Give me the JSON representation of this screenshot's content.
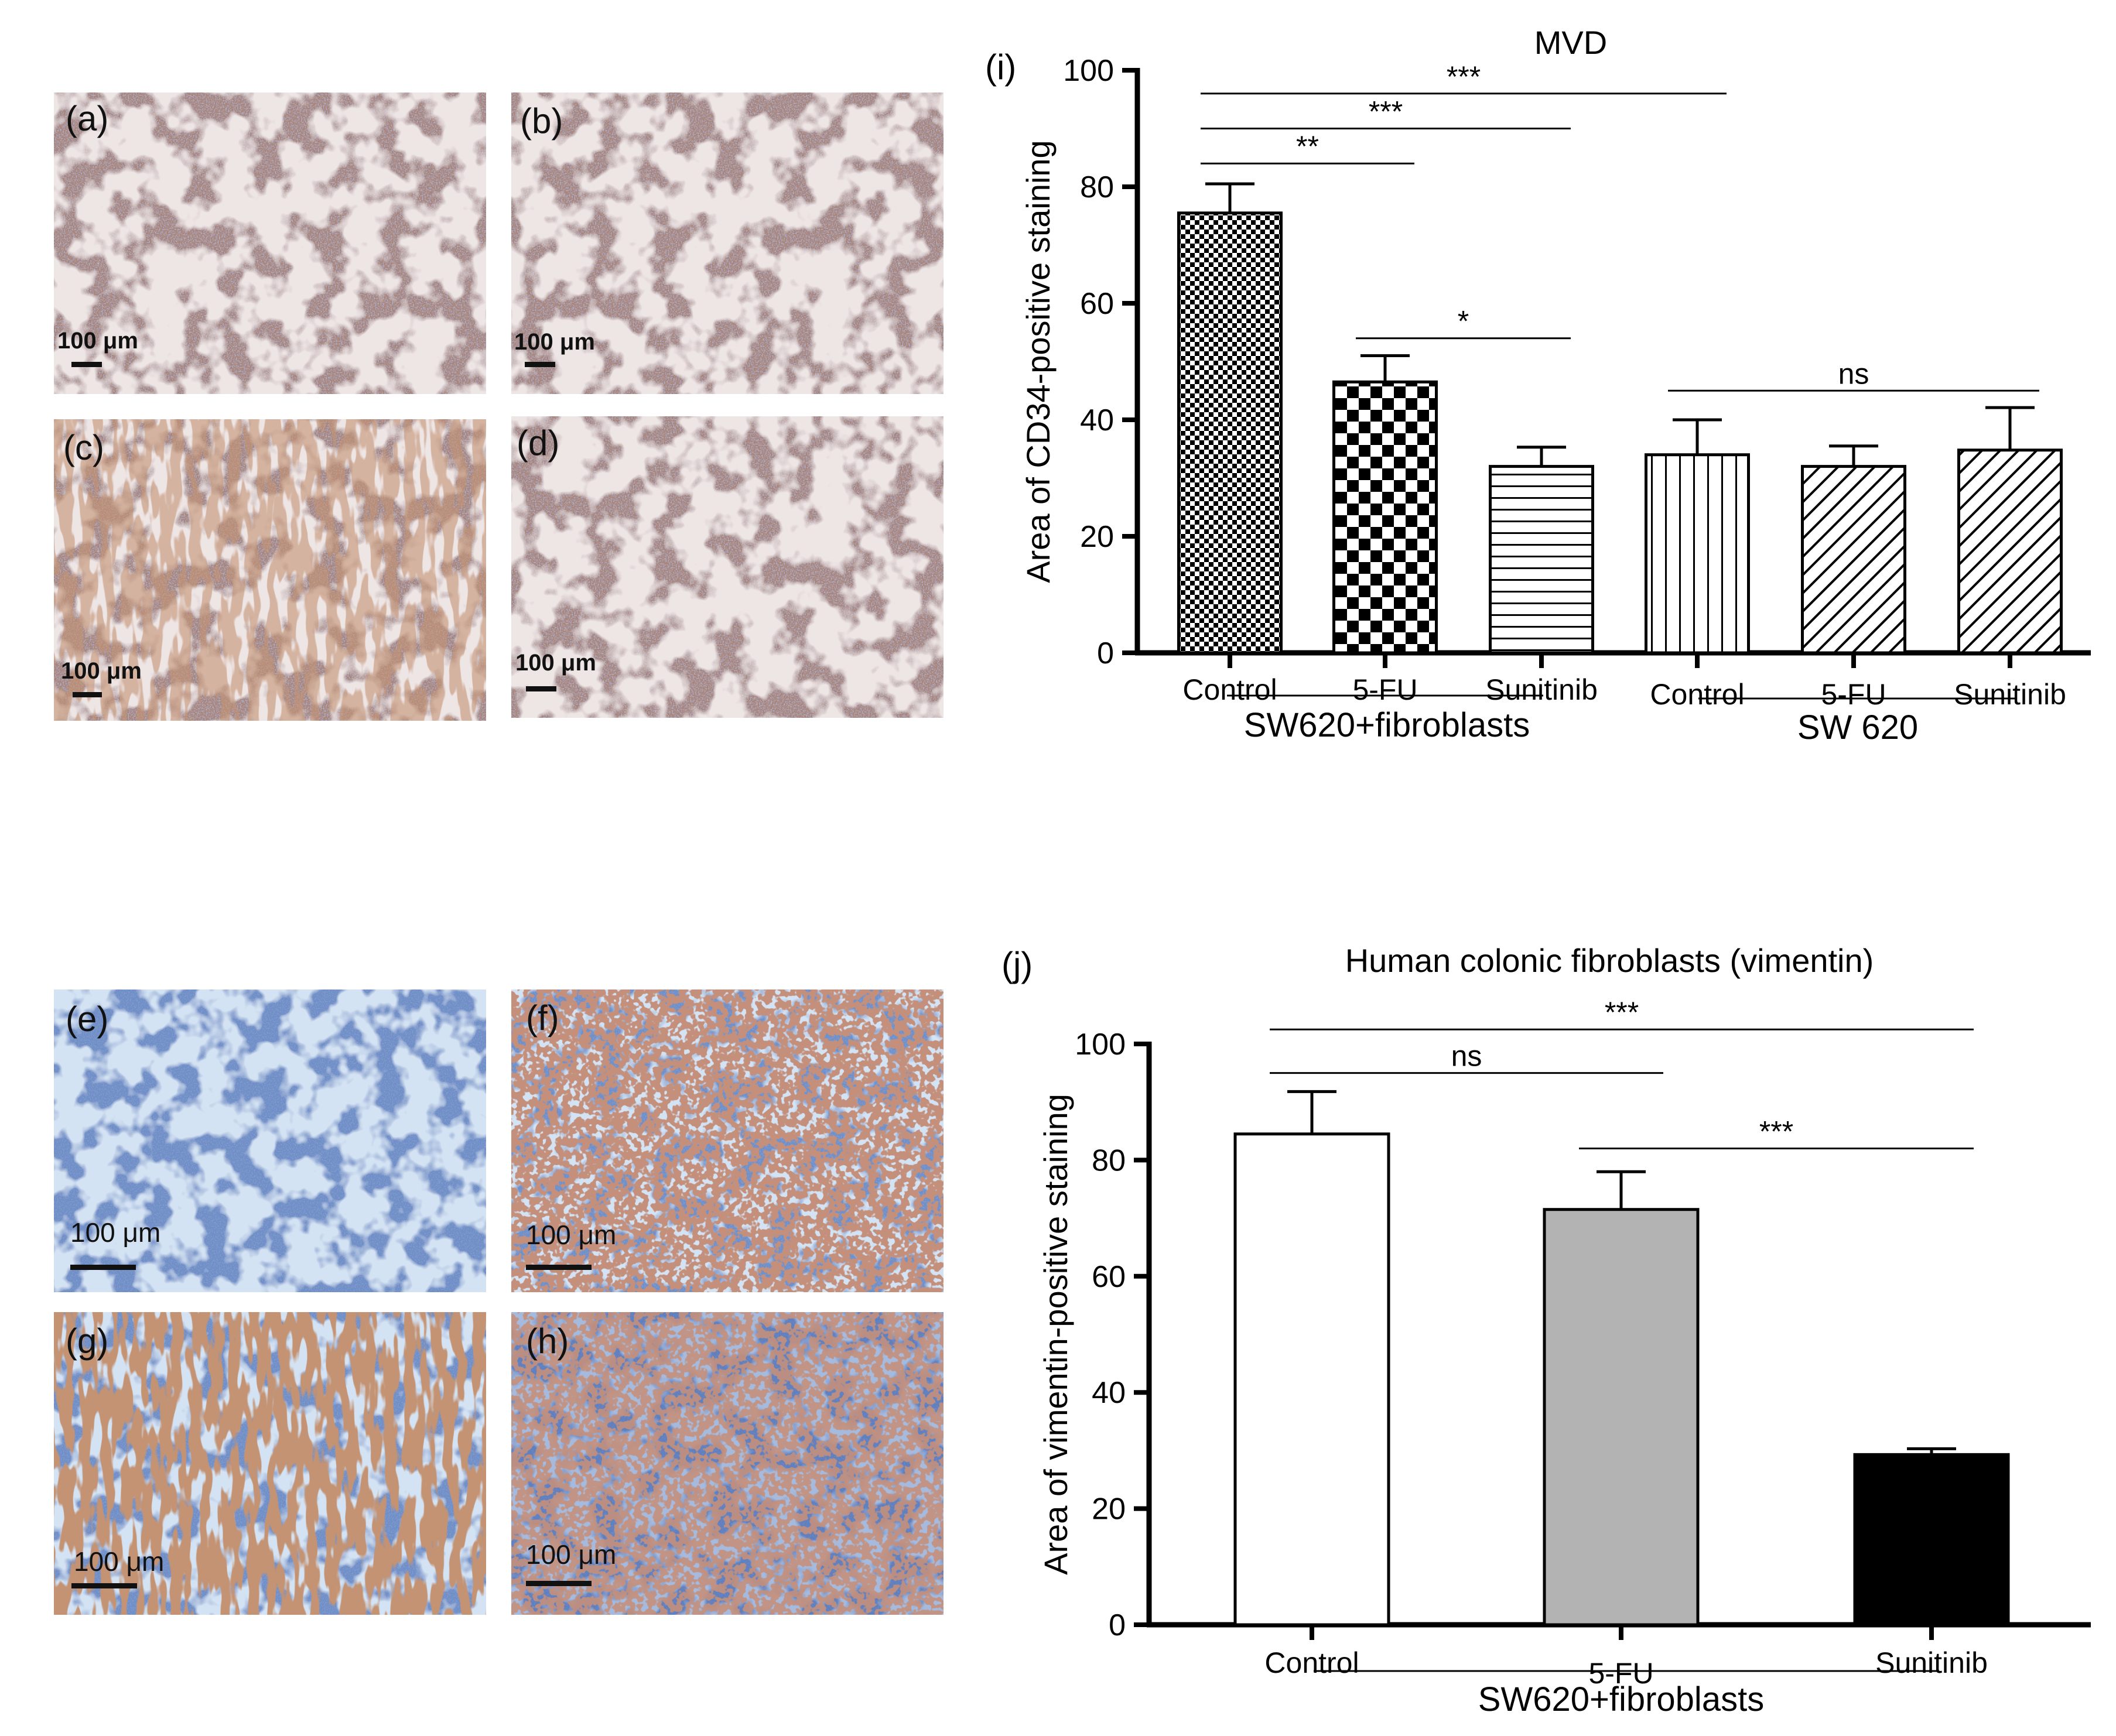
{
  "panels_top": [
    {
      "label": "(a)",
      "scale": "100 μm"
    },
    {
      "label": "(b)",
      "scale": "100 μm"
    },
    {
      "label": "(c)",
      "scale": "100 μm"
    },
    {
      "label": "(d)",
      "scale": "100 μm"
    }
  ],
  "panels_bottom": [
    {
      "label": "(e)",
      "scale": "100 μm"
    },
    {
      "label": "(f)",
      "scale": "100 μm"
    },
    {
      "label": "(g)",
      "scale": "100 μm"
    },
    {
      "label": "(h)",
      "scale": "100 μm"
    }
  ],
  "colors": {
    "brown_tissue": "#b08a7c",
    "brown_stroma": "#d9c9c2",
    "blue_tissue": "#6f8fc6",
    "blue_stroma": "#a9c0e0",
    "stain_brown": "#8a4a2a"
  },
  "chart_data": [
    {
      "panel_label": "(i)",
      "type": "bar",
      "title": "MVD",
      "ylabel": "Area of CD34-positive staining",
      "ylim": [
        0,
        100
      ],
      "yticks": [
        "0",
        "20",
        "40",
        "60",
        "80",
        "100"
      ],
      "categories": [
        "Control",
        "5-FU",
        "Sunitinib",
        "Control",
        "5-FU",
        "Sunitinib"
      ],
      "values": [
        75.5,
        46.5,
        32,
        34,
        32,
        34.8
      ],
      "errors": [
        5,
        4.5,
        3.3,
        6,
        3.5,
        7.3
      ],
      "patterns": [
        "checker-fine",
        "checker-coarse",
        "horizontal",
        "vertical",
        "diagonal",
        "diagonal"
      ],
      "groups": [
        {
          "label": "SW620+fibroblasts",
          "span": [
            0,
            2
          ]
        },
        {
          "label": "SW 620",
          "span": [
            3,
            5
          ]
        }
      ],
      "significance": [
        {
          "from": 0,
          "to": 3,
          "y": 96,
          "label": "***"
        },
        {
          "from": 0,
          "to": 2,
          "y": 90,
          "label": "***"
        },
        {
          "from": 0,
          "to": 1,
          "y": 84,
          "label": "**"
        },
        {
          "from": 1,
          "to": 2,
          "y": 54,
          "label": "*"
        },
        {
          "from": 3,
          "to": 5,
          "y": 45,
          "label": "ns"
        }
      ]
    },
    {
      "panel_label": "(j)",
      "type": "bar",
      "title": "Human colonic fibroblasts (vimentin)",
      "ylabel": "Area of vimentin-positive staining",
      "ylim": [
        0,
        100
      ],
      "yticks": [
        "0",
        "20",
        "40",
        "60",
        "80",
        "100"
      ],
      "categories": [
        "Control",
        "5-FU",
        "Sunitinib"
      ],
      "values": [
        84.5,
        71.5,
        29.3
      ],
      "errors": [
        7.3,
        6.5,
        1
      ],
      "fills": [
        "#ffffff",
        "#b3b3b3",
        "#000000"
      ],
      "groups": [
        {
          "label": "SW620+fibroblasts",
          "span": [
            0,
            2
          ]
        }
      ],
      "significance": [
        {
          "from": 0,
          "to": 2,
          "y": 102.5,
          "label": "***"
        },
        {
          "from": 0,
          "to": 1,
          "y": 95,
          "label": "ns"
        },
        {
          "from": 1,
          "to": 2,
          "y": 82,
          "label": "***"
        }
      ]
    }
  ]
}
